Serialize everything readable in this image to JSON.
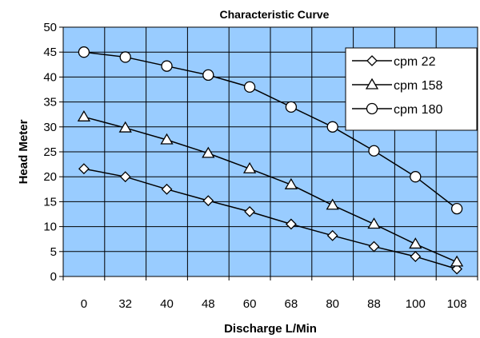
{
  "chart_data": {
    "type": "line",
    "title": "Characteristic Curve",
    "xlabel": "Discharge L/Min",
    "ylabel": "Head Meter",
    "categories": [
      "0",
      "32",
      "40",
      "48",
      "60",
      "68",
      "80",
      "88",
      "100",
      "108"
    ],
    "ylim": [
      0,
      50
    ],
    "yticks": [
      "0",
      "5",
      "10",
      "15",
      "20",
      "25",
      "30",
      "35",
      "40",
      "45",
      "50"
    ],
    "grid": true,
    "legend_position": "top-right",
    "plot_background": "#99ccff",
    "series": [
      {
        "name": "cpm 22",
        "marker": "diamond",
        "values": [
          21.6,
          20.0,
          17.5,
          15.2,
          13.0,
          10.5,
          8.2,
          6.0,
          4.0,
          1.5
        ]
      },
      {
        "name": "cpm 158",
        "marker": "triangle",
        "values": [
          32.0,
          29.8,
          27.4,
          24.7,
          21.6,
          18.4,
          14.3,
          10.5,
          6.5,
          2.9
        ]
      },
      {
        "name": "cpm 180",
        "marker": "circle",
        "values": [
          45.0,
          44.0,
          42.2,
          40.4,
          38.0,
          34.0,
          30.0,
          25.2,
          20.0,
          13.6
        ]
      }
    ]
  }
}
